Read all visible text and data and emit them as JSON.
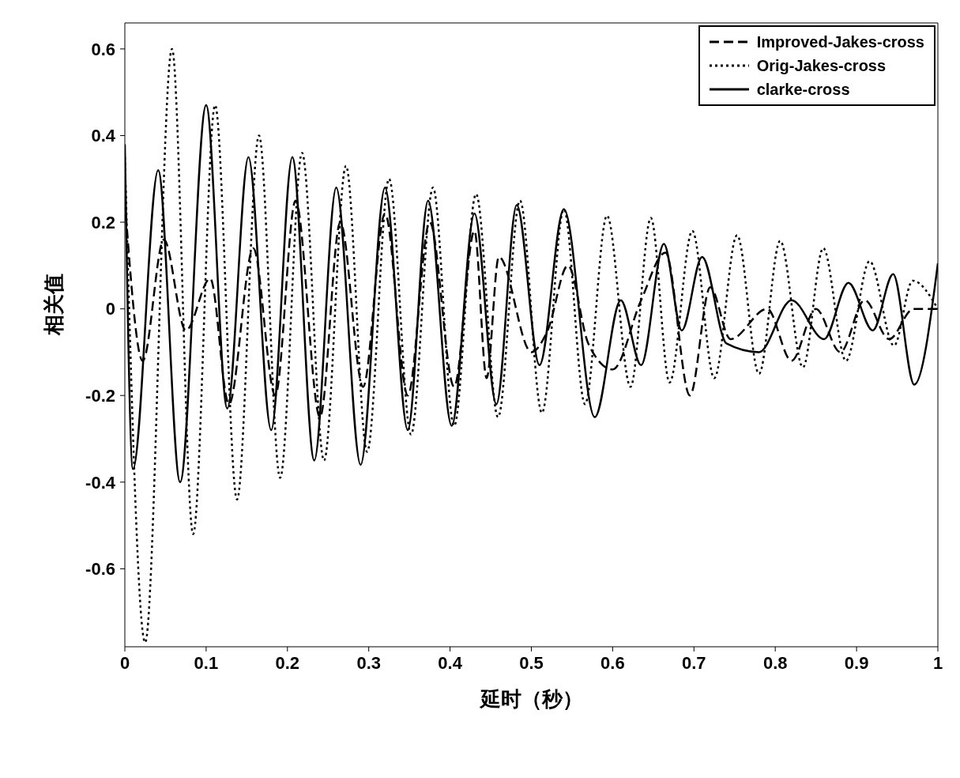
{
  "chart_data": {
    "type": "line",
    "xlabel": "延时（秒）",
    "ylabel": "相关值",
    "xlim": [
      0,
      1
    ],
    "xticks": [
      0,
      0.1,
      0.2,
      0.3,
      0.4,
      0.5,
      0.6,
      0.7,
      0.8,
      0.9,
      1
    ],
    "ylim": [
      -0.78,
      0.66
    ],
    "yticks": [
      -0.6,
      -0.4,
      -0.2,
      0,
      0.2,
      0.4,
      0.6
    ],
    "grid": false,
    "legend": "top right",
    "marker": "none",
    "series": [
      {
        "name": "Improved-Jakes-cross",
        "color": "#000000",
        "line_style": "dashed",
        "x": [
          0,
          0.022,
          0.048,
          0.075,
          0.105,
          0.128,
          0.158,
          0.185,
          0.21,
          0.24,
          0.265,
          0.293,
          0.32,
          0.348,
          0.375,
          0.405,
          0.43,
          0.445,
          0.46,
          0.5,
          0.52,
          0.545,
          0.57,
          0.6,
          0.635,
          0.665,
          0.695,
          0.72,
          0.745,
          0.79,
          0.82,
          0.85,
          0.88,
          0.91,
          0.94,
          0.97,
          1
        ],
        "values": [
          0.25,
          -0.12,
          0.16,
          -0.05,
          0.07,
          -0.22,
          0.14,
          -0.2,
          0.25,
          -0.25,
          0.2,
          -0.18,
          0.22,
          -0.2,
          0.2,
          -0.18,
          0.18,
          -0.16,
          0.12,
          -0.1,
          -0.05,
          0.1,
          -0.08,
          -0.14,
          0.02,
          0.13,
          -0.2,
          0.05,
          -0.07,
          0,
          -0.12,
          0,
          -0.1,
          0.02,
          -0.07,
          0,
          0
        ]
      },
      {
        "name": "Orig-Jakes-cross",
        "color": "#000000",
        "line_style": "dotted",
        "x": [
          0,
          0.025,
          0.058,
          0.084,
          0.111,
          0.138,
          0.165,
          0.191,
          0.218,
          0.245,
          0.272,
          0.298,
          0.325,
          0.352,
          0.379,
          0.405,
          0.432,
          0.459,
          0.486,
          0.513,
          0.54,
          0.566,
          0.593,
          0.622,
          0.647,
          0.67,
          0.698,
          0.725,
          0.753,
          0.78,
          0.806,
          0.834,
          0.859,
          0.887,
          0.916,
          0.946,
          0.969,
          1
        ],
        "values": [
          0.35,
          -0.77,
          0.6,
          -0.52,
          0.47,
          -0.44,
          0.4,
          -0.39,
          0.36,
          -0.35,
          0.33,
          -0.33,
          0.3,
          -0.29,
          0.28,
          -0.27,
          0.265,
          -0.25,
          0.25,
          -0.24,
          0.23,
          -0.22,
          0.215,
          -0.18,
          0.21,
          -0.17,
          0.18,
          -0.16,
          0.17,
          -0.15,
          0.157,
          -0.135,
          0.14,
          -0.12,
          0.11,
          -0.085,
          0.065,
          0
        ]
      },
      {
        "name": "clarke-cross",
        "color": "#000000",
        "line_style": "solid",
        "x": [
          0,
          0.01,
          0.041,
          0.068,
          0.1,
          0.126,
          0.152,
          0.18,
          0.206,
          0.233,
          0.26,
          0.29,
          0.32,
          0.348,
          0.373,
          0.402,
          0.43,
          0.457,
          0.482,
          0.51,
          0.54,
          0.578,
          0.61,
          0.635,
          0.663,
          0.685,
          0.71,
          0.74,
          0.78,
          0.82,
          0.86,
          0.89,
          0.92,
          0.945,
          0.971,
          1
        ],
        "values": [
          0.38,
          -0.37,
          0.32,
          -0.4,
          0.47,
          -0.23,
          0.35,
          -0.28,
          0.35,
          -0.35,
          0.28,
          -0.36,
          0.28,
          -0.28,
          0.25,
          -0.27,
          0.22,
          -0.22,
          0.24,
          -0.13,
          0.23,
          -0.25,
          0.02,
          -0.13,
          0.15,
          -0.05,
          0.12,
          -0.08,
          -0.1,
          0.02,
          -0.07,
          0.06,
          -0.05,
          0.08,
          -0.175,
          0.105
        ]
      }
    ]
  }
}
